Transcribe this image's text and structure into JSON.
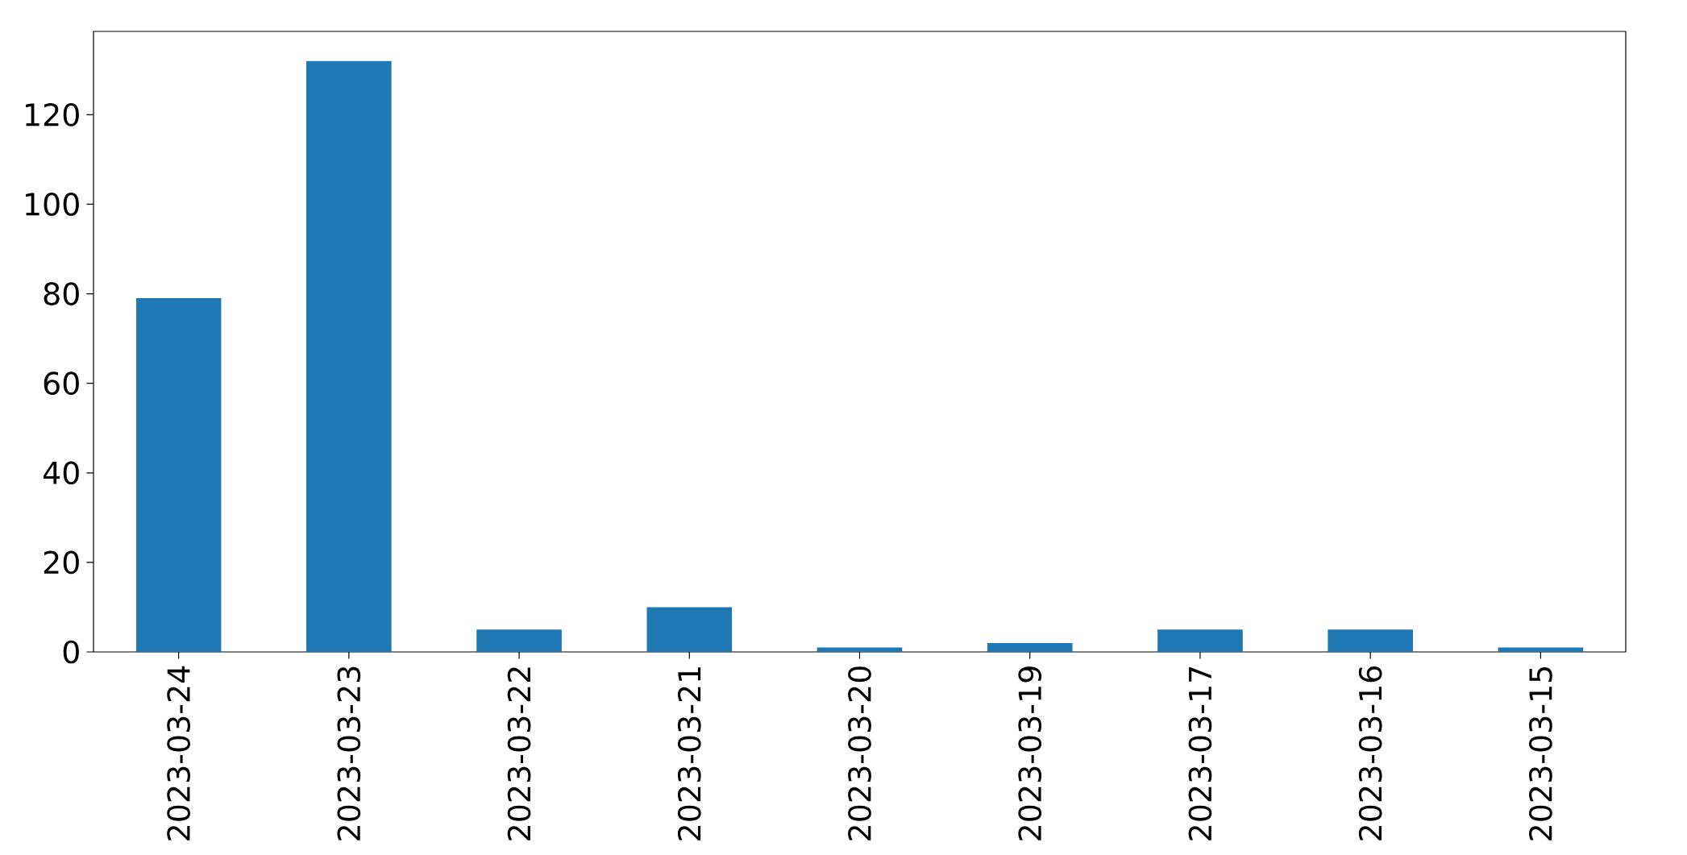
{
  "chart_data": {
    "type": "bar",
    "categories": [
      "2023-03-24",
      "2023-03-23",
      "2023-03-22",
      "2023-03-21",
      "2023-03-20",
      "2023-03-19",
      "2023-03-17",
      "2023-03-16",
      "2023-03-15"
    ],
    "values": [
      79,
      132,
      5,
      10,
      1,
      2,
      5,
      5,
      1
    ],
    "color": "#1f77b4",
    "ylim": [
      0,
      138.6
    ],
    "yticks": [
      0,
      20,
      40,
      60,
      80,
      100,
      120
    ],
    "grid": false
  }
}
